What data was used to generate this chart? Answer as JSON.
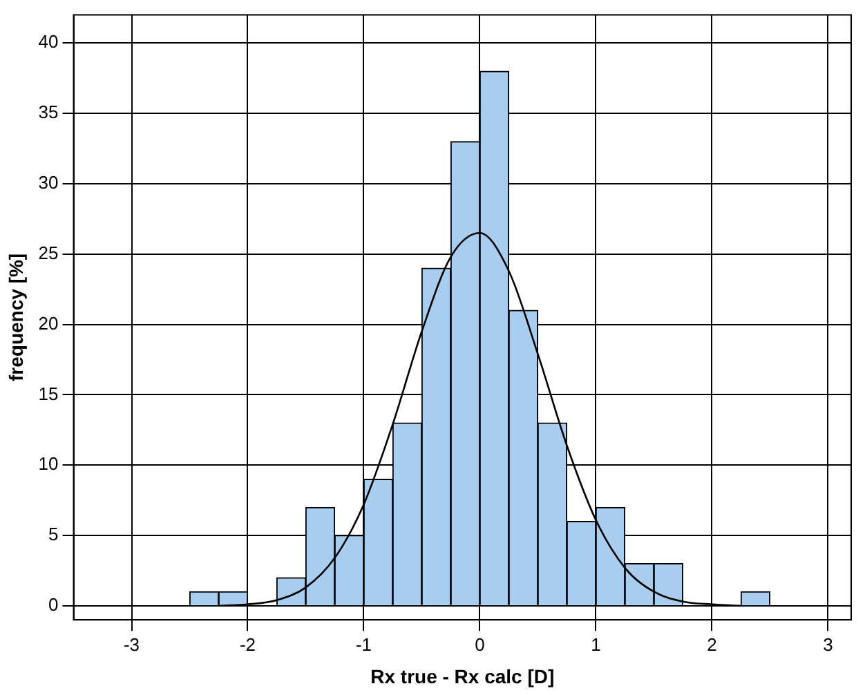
{
  "chart_data": {
    "type": "histogram",
    "xlabel": "Rx true - Rx calc [D]",
    "ylabel": "frequency [%]",
    "bins": [
      -2.5,
      -2.25,
      -2,
      -1.75,
      -1.5,
      -1.25,
      -1,
      -0.75,
      -0.5,
      -0.25,
      0,
      0.25,
      0.5,
      0.75,
      1,
      1.25,
      1.5,
      1.75,
      2,
      2.25,
      2.5
    ],
    "values": [
      1,
      1,
      0,
      2,
      7,
      5,
      9,
      13,
      24,
      33,
      38,
      21,
      13,
      6,
      7,
      3,
      3,
      0,
      0,
      1
    ],
    "color": "#a9cdee",
    "series": [
      {
        "type": "line",
        "color": "#000000",
        "x": [
          -2.25,
          -2,
          -1.75,
          -1.5,
          -1.25,
          -1,
          -0.75,
          -0.5,
          -0.25,
          0,
          0.25,
          0.5,
          0.75,
          1,
          1.25,
          1.5,
          1.75,
          2,
          2.25
        ],
        "values": [
          0,
          0.1,
          0.4,
          1.3,
          3.4,
          7.2,
          12.9,
          19.5,
          24.8,
          26.5,
          23.8,
          17.9,
          11.4,
          6.1,
          2.7,
          1,
          0.3,
          0.1,
          0
        ]
      }
    ],
    "xlim": [
      -3.5,
      3.2
    ],
    "xticks": [
      -3,
      -2,
      -1,
      0,
      1,
      2,
      3
    ],
    "ylim": [
      -1,
      42
    ],
    "yticks": [
      0,
      5,
      10,
      15,
      20,
      25,
      30,
      35,
      40
    ],
    "grid": true,
    "legend": false,
    "marker": "none"
  }
}
